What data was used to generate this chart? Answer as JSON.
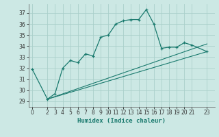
{
  "xlabel": "Humidex (Indice chaleur)",
  "bg_color": "#cce8e4",
  "grid_color": "#aacfca",
  "line_color": "#1a7a6e",
  "xlim": [
    -0.5,
    24
  ],
  "ylim": [
    28.5,
    37.8
  ],
  "yticks": [
    29,
    30,
    31,
    32,
    33,
    34,
    35,
    36,
    37
  ],
  "xticks": [
    0,
    2,
    3,
    4,
    5,
    6,
    7,
    8,
    9,
    10,
    11,
    12,
    13,
    14,
    15,
    16,
    17,
    18,
    19,
    20,
    21,
    23
  ],
  "series1_x": [
    0,
    2,
    3,
    4,
    5,
    6,
    7,
    8,
    9,
    10,
    11,
    12,
    13,
    14,
    15,
    16,
    17,
    18,
    19,
    20,
    21,
    23
  ],
  "series1_y": [
    31.9,
    29.2,
    29.7,
    32.0,
    32.7,
    32.5,
    33.3,
    33.1,
    34.8,
    35.0,
    36.0,
    36.3,
    36.4,
    36.4,
    37.3,
    36.0,
    33.8,
    33.9,
    33.9,
    34.3,
    34.1,
    33.5
  ],
  "series2_x": [
    2,
    23
  ],
  "series2_y": [
    29.2,
    33.5
  ],
  "series3_x": [
    2,
    23
  ],
  "series3_y": [
    29.2,
    34.2
  ]
}
